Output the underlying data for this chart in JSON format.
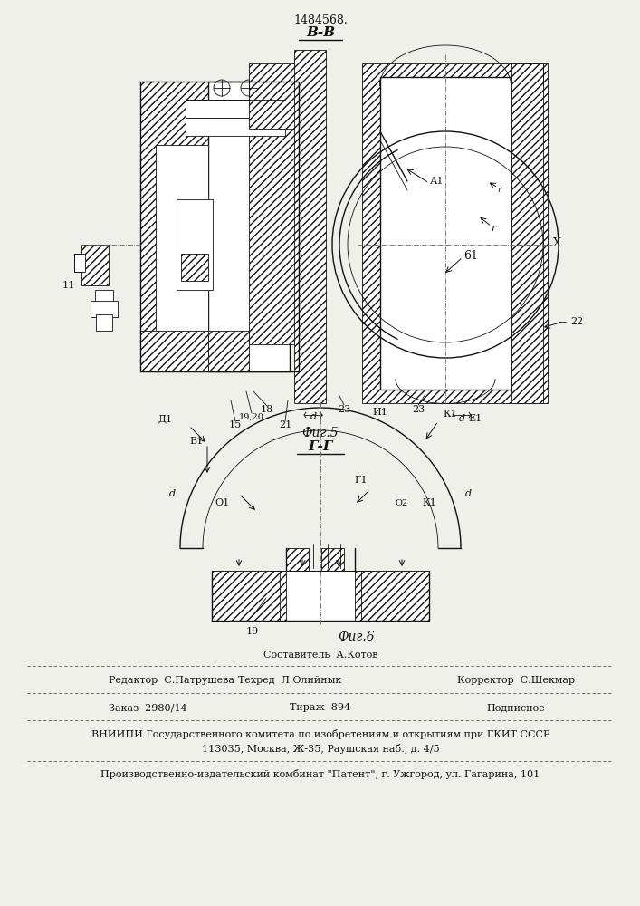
{
  "patent_number": "1484568.",
  "fig5_label": "В-В",
  "fig5_caption": "Фиг.5",
  "fig6_label": "Г-Г",
  "fig6_caption": "Фиг.6",
  "footer_line1_center_top": "Составитель  А.Котов",
  "footer_line1_left": "Редактор  С.Патрушева",
  "footer_line1_center": "Техред  Л.Олийнык",
  "footer_line1_right": "Корректор  С.Шекмар",
  "footer_line2_left": "Заказ  2980/14",
  "footer_line2_center": "Тираж  894",
  "footer_line2_right": "Подписное",
  "footer_line3": "ВНИИПИ Государственного комитета по изобретениям и открытиям при ГКИТ СССР",
  "footer_line4": "113035, Москва, Ж-35, Раушская наб., д. 4/5",
  "footer_line5": "Производственно-издательский комбинат \"Патент\", г. Ужгород, ул. Гагарина, 101",
  "bg_color": "#f0f0eb",
  "line_color": "#111111"
}
